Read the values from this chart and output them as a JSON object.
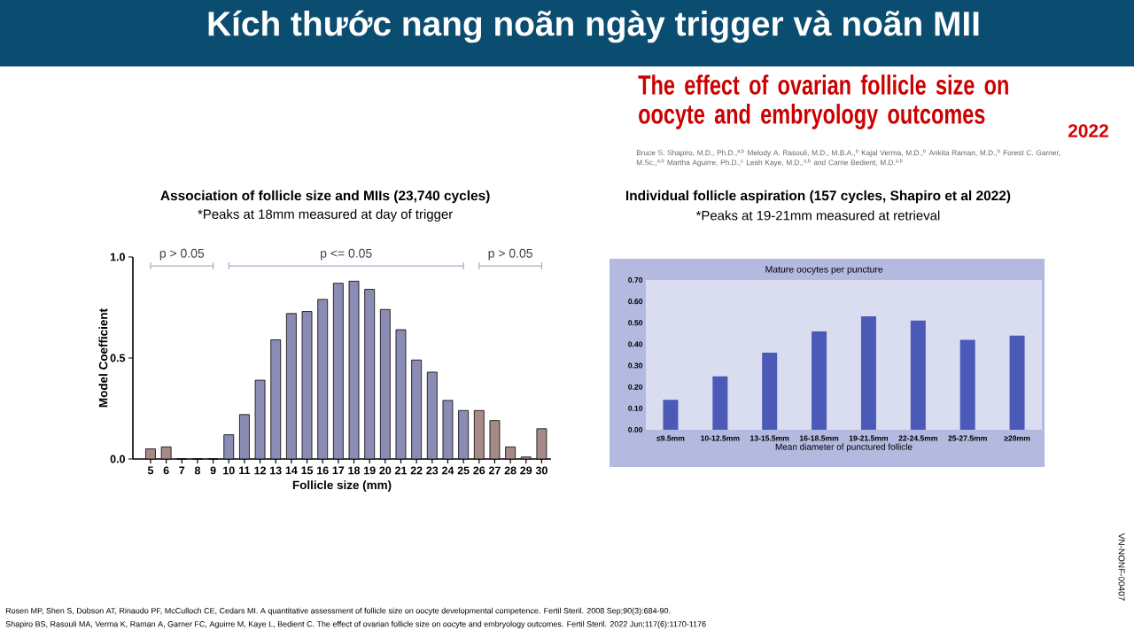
{
  "chart_data": [
    {
      "type": "other",
      "title": "Kích thước nang noãn ngày trigger và noãn MII",
      "annotations": [
        "The effect of ovarian follicle size on oocyte and embryology outcomes",
        "2022",
        "Bruce S. Shapiro, M.D., Ph.D.,$^{a,b}$ Melody A. Rasouli, M.D., M.B.A.,$^{b}$ Kajal Verma, M.D.,$^{b}$ Ankita Raman, M.D.,$^{b}$ Forest C. Garner, M.Sc.,$^{a,b}$ Martha Aguirre, Ph.D.,$^{c}$ Leah Kaye, M.D.,$^{a,b}$ and Carrie Bedient, M.D.$^{a,b}$",
        "Rosen MP,  Shen S, Dobson AT, Rinaudo PF, McCulloch  CE, Cedars MI.  A quantitative  assessment of follicle size on oocyte developmental  competence.  Fertil Steril.  2008 Sep;90(3):684-90.",
        "Shapiro BS, Rasouli MA, Verma K, Raman A, Garner FC, Aguirre M, Kaye L, Bedient C. The effect of ovarian follicle size on oocyte and embryology outcomes. Fertil Steril. 2022 Jun;117(6):1170-1176",
        "VN-NONF-00407"
      ]
    },
    {
      "type": "bar",
      "title": "Association of follicle size and MIIs (23,740 cycles)",
      "subtitle": "*Peaks at 18mm measured at day of trigger",
      "xlabel": "Follicle size (mm)",
      "ylabel": "Model Coefficient",
      "categories": [
        "5",
        "6",
        "7",
        "8",
        "9",
        "10",
        "11",
        "12",
        "13",
        "14",
        "15",
        "16",
        "17",
        "18",
        "19",
        "20",
        "21",
        "22",
        "23",
        "24",
        "25",
        "26",
        "27",
        "28",
        "29",
        "30"
      ],
      "values": [
        0.05,
        0.06,
        0,
        0,
        0,
        0.12,
        0.22,
        0.39,
        0.59,
        0.72,
        0.73,
        0.79,
        0.87,
        0.88,
        0.84,
        0.74,
        0.64,
        0.49,
        0.43,
        0.29,
        0.24,
        0.24,
        0.19,
        0.06,
        0.01,
        0.15
      ],
      "colors": [
        "#a68a86",
        "#a68a86",
        "#a68a86",
        "#a68a86",
        "#a68a86",
        "#8a8cb4",
        "#8a8cb4",
        "#8a8cb4",
        "#8a8cb4",
        "#8a8cb4",
        "#8a8cb4",
        "#8a8cb4",
        "#8a8cb4",
        "#8a8cb4",
        "#8a8cb4",
        "#8a8cb4",
        "#8a8cb4",
        "#8a8cb4",
        "#8a8cb4",
        "#8a8cb4",
        "#8a8cb4",
        "#a68a86",
        "#a68a86",
        "#a68a86",
        "#a68a86",
        "#a68a86"
      ],
      "ylim": [
        0,
        1
      ],
      "yticks": [
        {
          "value": 0,
          "label": "0.0"
        },
        {
          "value": 0.5,
          "label": "0.5"
        },
        {
          "value": 1,
          "label": "1.0"
        }
      ],
      "annotations": [
        "p > 0.05",
        "p <= 0.05",
        "p > 0.05"
      ]
    },
    {
      "type": "bar",
      "title": "Individual follicle aspiration (157 cycles, Shapiro et al 2022)",
      "subtitle": "*Peaks at 19-21mm measured at retrieval",
      "xlabel": "Mean diameter of punctured follicle",
      "categories": [
        "≤9.5mm",
        "10-12.5mm",
        "13-15.5mm",
        "16-18.5mm",
        "19-21.5mm",
        "22-24.5mm",
        "25-27.5mm",
        "≥28mm"
      ],
      "values": [
        0.14,
        0.25,
        0.36,
        0.46,
        0.53,
        0.51,
        0.42,
        0.44
      ],
      "color": "#4b5ab6",
      "ylim": [
        0,
        0.7
      ],
      "yticks": [
        {
          "value": 0,
          "label": "0.00"
        },
        {
          "value": 0.1,
          "label": "0.10"
        },
        {
          "value": 0.2,
          "label": "0.20"
        },
        {
          "value": 0.3,
          "label": "0.30"
        },
        {
          "value": 0.4,
          "label": "0.40"
        },
        {
          "value": 0.5,
          "label": "0.50"
        },
        {
          "value": 0.6,
          "label": "0.60"
        },
        {
          "value": 0.7,
          "label": "0.70"
        }
      ],
      "annotations": [
        "Mature oocytes per puncture"
      ]
    }
  ]
}
